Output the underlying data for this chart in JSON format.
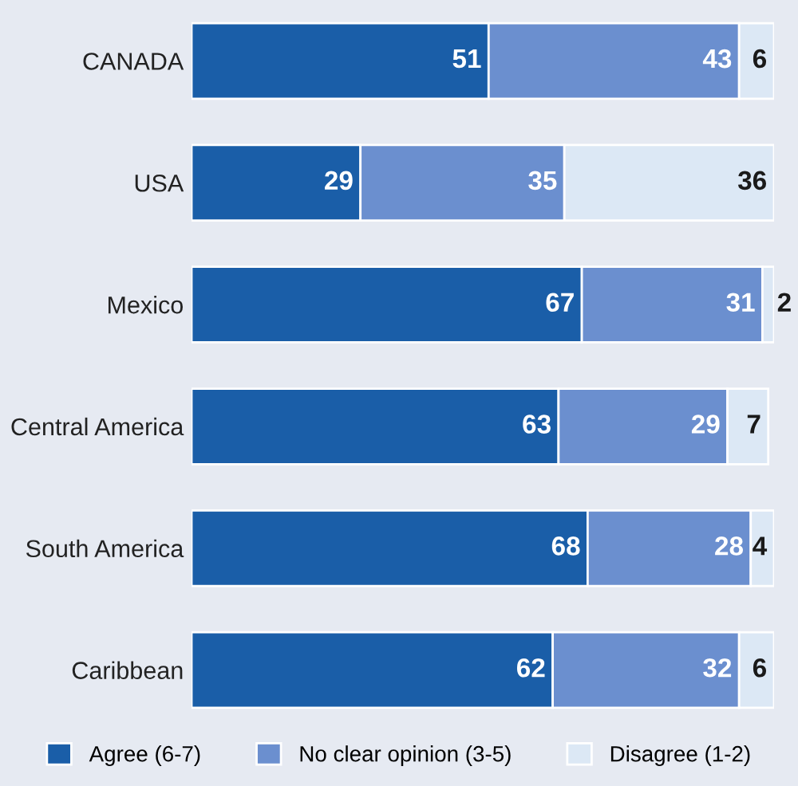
{
  "chart_data": {
    "type": "bar",
    "orientation": "horizontal",
    "stacked": true,
    "data_labels": true,
    "legend": "bottom",
    "grid": false,
    "tick_labels": "y",
    "xlim": [
      0,
      100
    ],
    "categories": [
      "CANADA",
      "USA",
      "Mexico",
      "Central America",
      "South America",
      "Caribbean"
    ],
    "series": [
      {
        "name": "Agree (6-7)",
        "color": "#1a5ea8",
        "values": [
          51,
          29,
          67,
          63,
          68,
          62
        ]
      },
      {
        "name": "No clear opinion (3-5)",
        "color": "#6b8fcf",
        "values": [
          43,
          35,
          31,
          29,
          28,
          32
        ]
      },
      {
        "name": "Disagree (1-2)",
        "color": "#dce8f5",
        "values": [
          6,
          36,
          2,
          7,
          4,
          6
        ]
      }
    ]
  }
}
